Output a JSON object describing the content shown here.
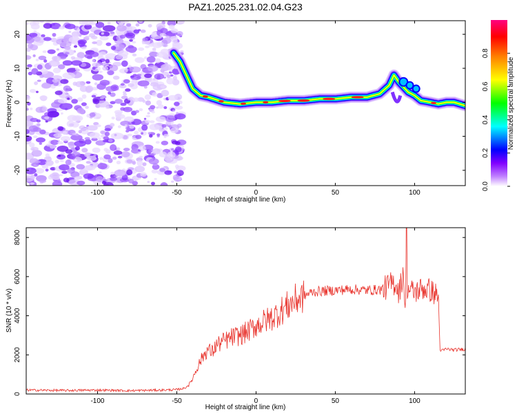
{
  "title": "PAZ1.2025.231.02.04.G23",
  "chart_data": [
    {
      "type": "heatmap",
      "title": "PAZ1.2025.231.02.04.G23",
      "xlabel": "Height of straight line (km)",
      "ylabel": "Frequency (Hz)",
      "xlim": [
        -145,
        132
      ],
      "ylim": [
        -24.5,
        24
      ],
      "xticks": [
        -100,
        -50,
        0,
        50,
        100
      ],
      "yticks": [
        -20,
        -10,
        0,
        10,
        20
      ],
      "colorbar": {
        "label": "Normalized spectral amplitude",
        "range": [
          0,
          1
        ],
        "ticks": [
          0.0,
          0.2,
          0.4,
          0.6,
          0.8
        ],
        "colormap": [
          "#ffffff",
          "#a000ff",
          "#0000ff",
          "#00ffff",
          "#00ff00",
          "#ffff00",
          "#ff8000",
          "#ff0000",
          "#ff0080"
        ]
      },
      "noise_region_x": [
        -145,
        -50
      ],
      "ridge": {
        "x": [
          -52,
          -48,
          -44,
          -40,
          -35,
          -30,
          -20,
          -10,
          0,
          10,
          20,
          30,
          40,
          50,
          60,
          70,
          78,
          84,
          87,
          90,
          93,
          96,
          100,
          104,
          110,
          115,
          120,
          125,
          132
        ],
        "y": [
          14.5,
          12,
          8,
          4,
          2,
          1.5,
          0,
          -0.5,
          0,
          0,
          0.5,
          0.5,
          1,
          1,
          1.5,
          1.5,
          2.5,
          5,
          8,
          6,
          4.5,
          3,
          2,
          0.5,
          0,
          -0.5,
          0,
          0,
          -1
        ]
      }
    },
    {
      "type": "line",
      "xlabel": "Height of straight line (km)",
      "ylabel": "SNR (10 * v/v)",
      "xlim": [
        -145,
        132
      ],
      "ylim": [
        0,
        8500
      ],
      "xticks": [
        -100,
        -50,
        0,
        50,
        100
      ],
      "yticks": [
        0,
        2000,
        4000,
        6000,
        8000
      ],
      "color": "#e8312a",
      "series": [
        {
          "name": "SNR",
          "x": [
            -145,
            -120,
            -100,
            -80,
            -60,
            -50,
            -45,
            -42,
            -40,
            -38,
            -35,
            -33,
            -30,
            -28,
            -25,
            -20,
            -15,
            -10,
            -5,
            0,
            5,
            10,
            15,
            20,
            25,
            30,
            35,
            40,
            50,
            60,
            70,
            80,
            85,
            88,
            90,
            92,
            93,
            94,
            95,
            97,
            100,
            105,
            110,
            115,
            116,
            117,
            120,
            125,
            132
          ],
          "y": [
            200,
            180,
            200,
            170,
            200,
            220,
            300,
            500,
            800,
            1200,
            1700,
            2000,
            2300,
            2100,
            2500,
            2700,
            2900,
            3000,
            3200,
            3500,
            3700,
            3900,
            4200,
            4500,
            4800,
            5000,
            5200,
            5250,
            5300,
            5350,
            5300,
            5350,
            5600,
            5700,
            5200,
            5800,
            6500,
            4000,
            5500,
            5300,
            5200,
            5400,
            5300,
            5000,
            2300,
            2200,
            2300,
            2250,
            2300
          ]
        }
      ]
    }
  ]
}
